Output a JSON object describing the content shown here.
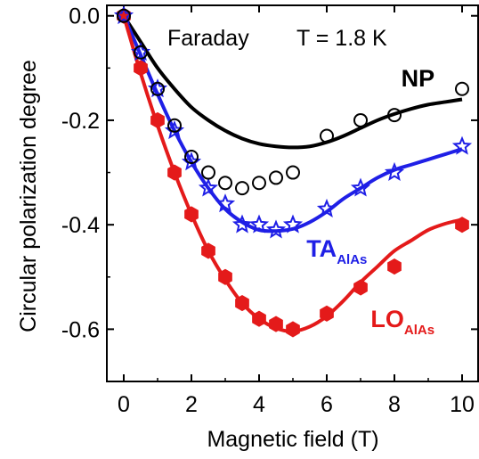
{
  "chart_data": {
    "type": "scatter",
    "title": "",
    "xlabel": "Magnetic field (T)",
    "ylabel": "Circular polarization degree",
    "xlim": [
      -0.5,
      10.5
    ],
    "ylim": [
      -0.7,
      0.02
    ],
    "xticks": [
      0,
      2,
      4,
      6,
      8,
      10
    ],
    "xtick_labels": [
      "0",
      "2",
      "4",
      "6",
      "8",
      "10"
    ],
    "yticks": [
      0.0,
      -0.2,
      -0.4,
      -0.6
    ],
    "ytick_labels": [
      "0.0",
      "-0.2",
      "-0.4",
      "-0.6"
    ],
    "grid": false,
    "annotations": {
      "geometry": "Faraday",
      "temperature": "T = 1.8 K"
    },
    "series": [
      {
        "name": "NP",
        "label_main": "NP",
        "label_sub": "",
        "color": "#000000",
        "marker": "open-circle",
        "points": {
          "x": [
            0,
            0.5,
            1,
            1.5,
            2,
            2.5,
            3,
            3.5,
            4,
            4.5,
            5,
            6,
            7,
            8,
            10
          ],
          "y": [
            0,
            -0.07,
            -0.14,
            -0.21,
            -0.27,
            -0.3,
            -0.32,
            -0.33,
            -0.32,
            -0.31,
            -0.3,
            -0.23,
            -0.2,
            -0.19,
            -0.14
          ]
        },
        "fit": {
          "x": [
            0,
            0.5,
            1,
            1.5,
            2,
            2.5,
            3,
            3.5,
            4,
            4.5,
            5,
            5.5,
            6,
            6.5,
            7,
            7.5,
            8,
            8.5,
            9,
            9.5,
            10
          ],
          "y": [
            0,
            -0.05,
            -0.1,
            -0.14,
            -0.175,
            -0.2,
            -0.22,
            -0.235,
            -0.245,
            -0.25,
            -0.252,
            -0.25,
            -0.242,
            -0.23,
            -0.215,
            -0.2,
            -0.188,
            -0.178,
            -0.17,
            -0.165,
            -0.16
          ]
        }
      },
      {
        "name": "TA_AlAs",
        "label_main": "TA",
        "label_sub": "AlAs",
        "color": "#1f1fe6",
        "marker": "open-star",
        "points": {
          "x": [
            0,
            0.5,
            1,
            1.5,
            2,
            2.5,
            3,
            3.5,
            4,
            4.5,
            5,
            6,
            7,
            8,
            10
          ],
          "y": [
            0,
            -0.07,
            -0.14,
            -0.22,
            -0.28,
            -0.33,
            -0.36,
            -0.4,
            -0.4,
            -0.41,
            -0.4,
            -0.37,
            -0.33,
            -0.3,
            -0.25
          ]
        },
        "fit": {
          "x": [
            0,
            0.5,
            1,
            1.5,
            2,
            2.5,
            3,
            3.5,
            4,
            4.5,
            5,
            5.5,
            6,
            6.5,
            7,
            7.5,
            8,
            8.5,
            9,
            9.5,
            10
          ],
          "y": [
            0,
            -0.075,
            -0.15,
            -0.22,
            -0.28,
            -0.33,
            -0.37,
            -0.395,
            -0.41,
            -0.412,
            -0.408,
            -0.395,
            -0.375,
            -0.35,
            -0.33,
            -0.31,
            -0.295,
            -0.285,
            -0.275,
            -0.265,
            -0.255
          ]
        }
      },
      {
        "name": "LO_AlAs",
        "label_main": "LO",
        "label_sub": "AlAs",
        "color": "#e41a1a",
        "marker": "filled-hexagon",
        "points": {
          "x": [
            0,
            0.5,
            1,
            1.5,
            2,
            2.5,
            3,
            3.5,
            4,
            4.5,
            5,
            6,
            7,
            8,
            10
          ],
          "y": [
            0,
            -0.1,
            -0.2,
            -0.3,
            -0.38,
            -0.45,
            -0.5,
            -0.55,
            -0.58,
            -0.59,
            -0.6,
            -0.57,
            -0.52,
            -0.48,
            -0.4
          ]
        },
        "fit": {
          "x": [
            0,
            0.5,
            1,
            1.5,
            2,
            2.5,
            3,
            3.5,
            4,
            4.5,
            5,
            5.5,
            6,
            6.5,
            7,
            7.5,
            8,
            8.5,
            9,
            9.5,
            10
          ],
          "y": [
            0,
            -0.11,
            -0.21,
            -0.3,
            -0.38,
            -0.45,
            -0.505,
            -0.55,
            -0.58,
            -0.598,
            -0.604,
            -0.595,
            -0.575,
            -0.545,
            -0.51,
            -0.48,
            -0.45,
            -0.43,
            -0.41,
            -0.398,
            -0.39
          ]
        }
      }
    ]
  }
}
